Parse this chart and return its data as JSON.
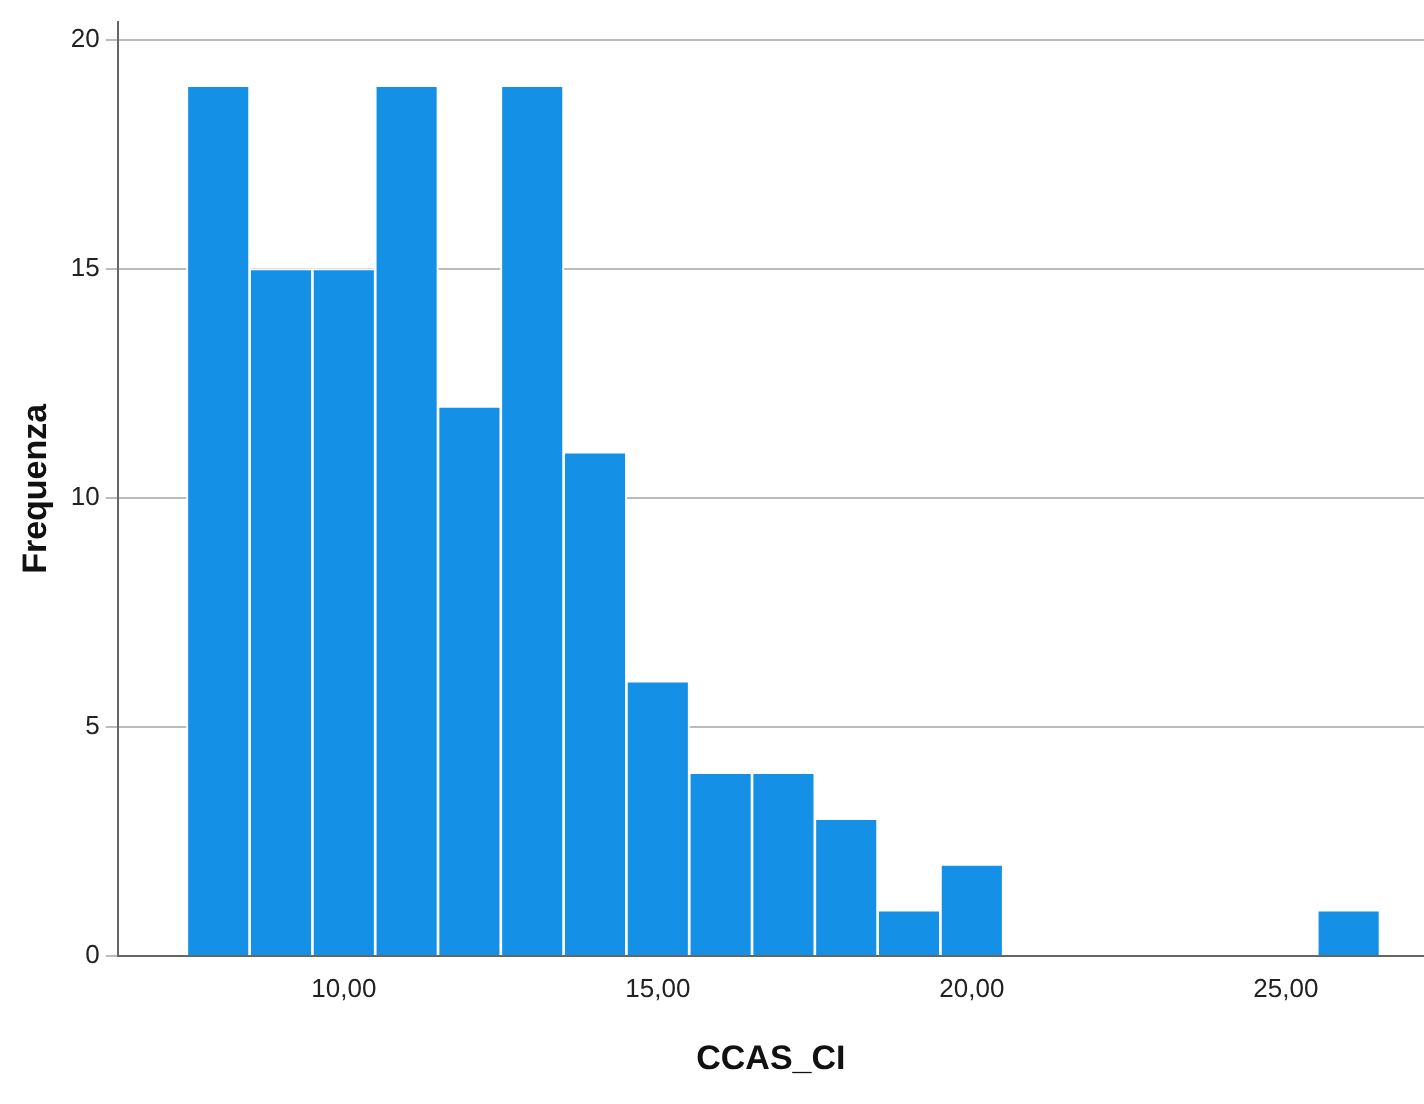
{
  "chart_data": {
    "type": "histogram",
    "xlabel": "CCAS_CI",
    "ylabel": "Frequenza",
    "bins": [
      7.5,
      8.5,
      9.5,
      10.5,
      11.5,
      12.5,
      13.5,
      14.5,
      15.5,
      16.5,
      17.5,
      18.5,
      19.5,
      20.5,
      21.5,
      22.5,
      23.5,
      24.5,
      25.5,
      26.5
    ],
    "values": [
      19,
      15,
      15,
      19,
      12,
      19,
      11,
      6,
      4,
      4,
      3,
      1,
      2,
      0,
      0,
      0,
      0,
      0,
      1
    ],
    "color": "#1491e6",
    "xlim": [
      6.4,
      27.2
    ],
    "xticks": [
      {
        "value": 10,
        "label": "10,00"
      },
      {
        "value": 15,
        "label": "15,00"
      },
      {
        "value": 20,
        "label": "20,00"
      },
      {
        "value": 25,
        "label": "25,00"
      }
    ],
    "ylim": [
      0,
      20.4
    ],
    "yticks": [
      0,
      5,
      10,
      15,
      20
    ],
    "grid": "y"
  }
}
